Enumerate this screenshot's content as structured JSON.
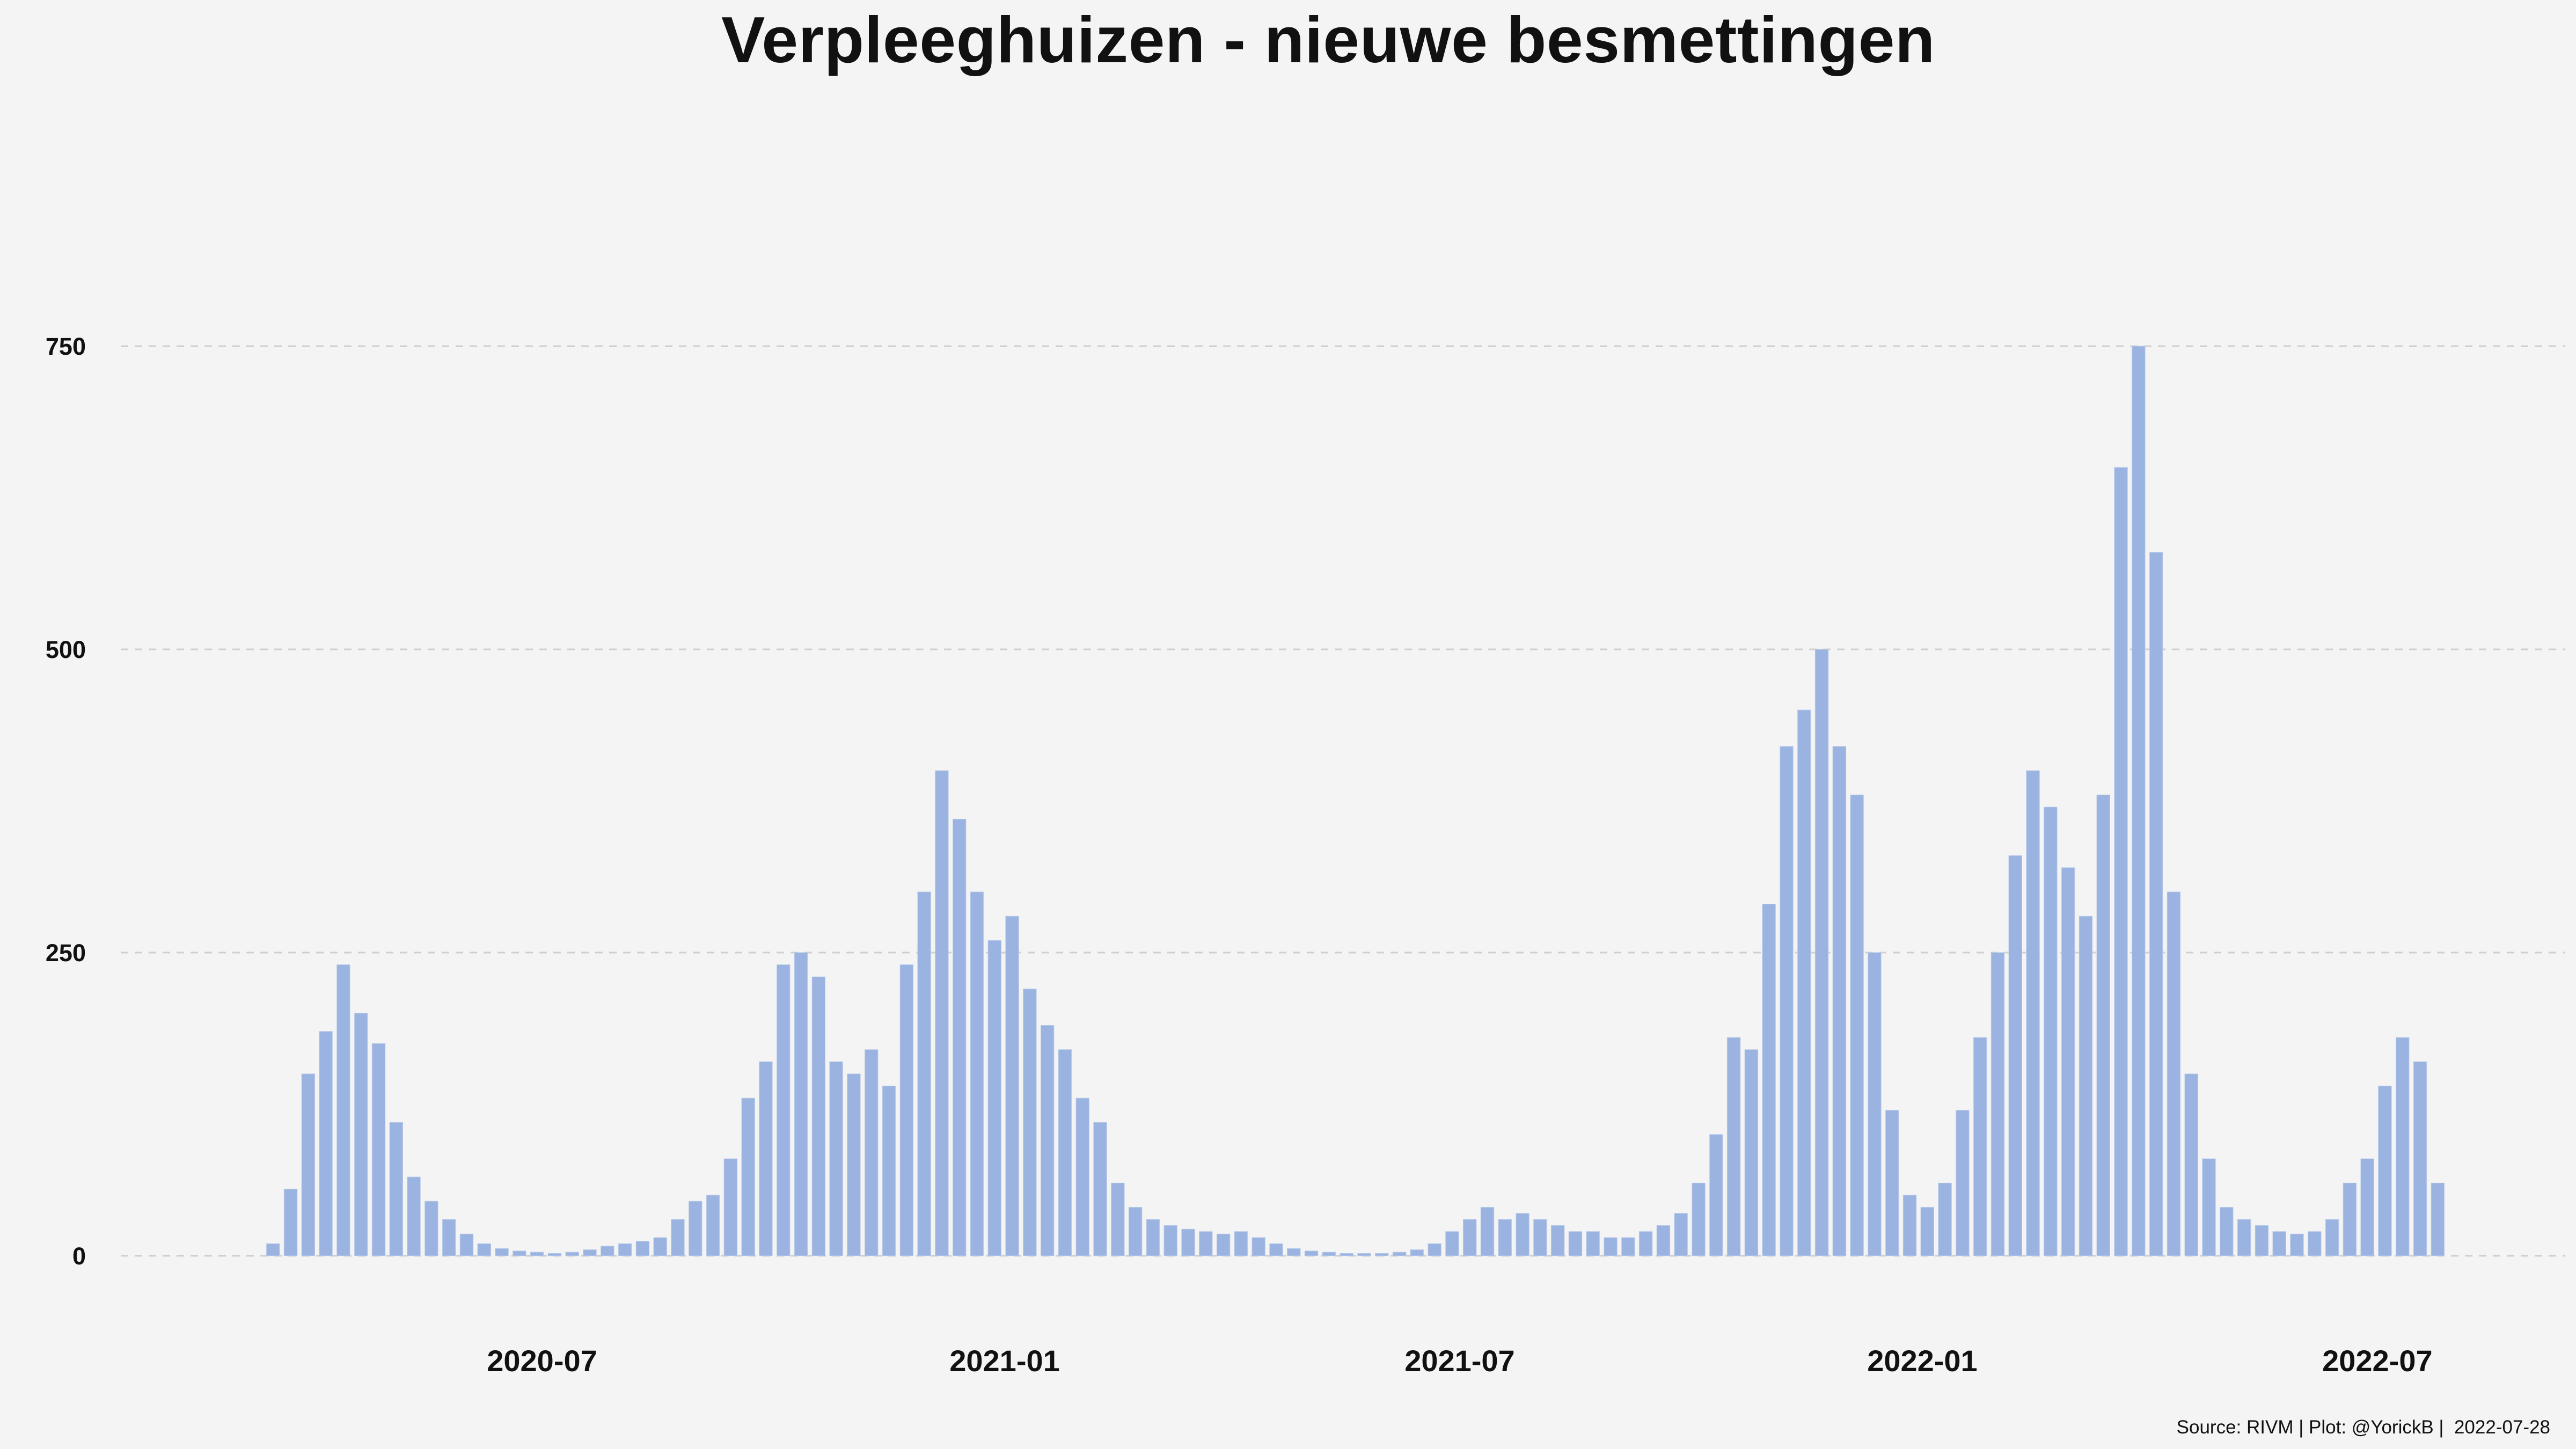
{
  "chart_data": {
    "type": "bar",
    "title": "Verpleeghuizen - nieuwe besmettingen",
    "xlabel": "",
    "ylabel": "",
    "x_ticks": [
      "2020-07",
      "2021-01",
      "2021-07",
      "2022-01",
      "2022-07"
    ],
    "y_ticks": [
      0,
      250,
      500,
      750
    ],
    "ylim": [
      0,
      920
    ],
    "grid": "horizontal dashed",
    "bar_color": "#9bb3e0",
    "resolution": "weekly sampled daily values (approx. every 7 days)",
    "dates": [
      "2020-03-16",
      "2020-03-23",
      "2020-03-30",
      "2020-04-06",
      "2020-04-13",
      "2020-04-20",
      "2020-04-27",
      "2020-05-04",
      "2020-05-11",
      "2020-05-18",
      "2020-05-25",
      "2020-06-01",
      "2020-06-08",
      "2020-06-15",
      "2020-06-22",
      "2020-06-29",
      "2020-07-06",
      "2020-07-13",
      "2020-07-20",
      "2020-07-27",
      "2020-08-03",
      "2020-08-10",
      "2020-08-17",
      "2020-08-24",
      "2020-08-31",
      "2020-09-07",
      "2020-09-14",
      "2020-09-21",
      "2020-09-28",
      "2020-10-05",
      "2020-10-12",
      "2020-10-19",
      "2020-10-26",
      "2020-11-02",
      "2020-11-09",
      "2020-11-16",
      "2020-11-23",
      "2020-11-30",
      "2020-12-07",
      "2020-12-14",
      "2020-12-21",
      "2020-12-28",
      "2021-01-04",
      "2021-01-11",
      "2021-01-18",
      "2021-01-25",
      "2021-02-01",
      "2021-02-08",
      "2021-02-15",
      "2021-02-22",
      "2021-03-01",
      "2021-03-08",
      "2021-03-15",
      "2021-03-22",
      "2021-03-29",
      "2021-04-05",
      "2021-04-12",
      "2021-04-19",
      "2021-04-26",
      "2021-05-03",
      "2021-05-10",
      "2021-05-17",
      "2021-05-24",
      "2021-05-31",
      "2021-06-07",
      "2021-06-14",
      "2021-06-21",
      "2021-06-28",
      "2021-07-05",
      "2021-07-12",
      "2021-07-19",
      "2021-07-26",
      "2021-08-02",
      "2021-08-09",
      "2021-08-16",
      "2021-08-23",
      "2021-08-30",
      "2021-09-06",
      "2021-09-13",
      "2021-09-20",
      "2021-09-27",
      "2021-10-04",
      "2021-10-11",
      "2021-10-18",
      "2021-10-25",
      "2021-11-01",
      "2021-11-08",
      "2021-11-15",
      "2021-11-22",
      "2021-11-29",
      "2021-12-06",
      "2021-12-13",
      "2021-12-20",
      "2021-12-27",
      "2022-01-03",
      "2022-01-10",
      "2022-01-17",
      "2022-01-24",
      "2022-01-31",
      "2022-02-07",
      "2022-02-14",
      "2022-02-21",
      "2022-02-28",
      "2022-03-07",
      "2022-03-14",
      "2022-03-21",
      "2022-03-28",
      "2022-04-04",
      "2022-04-11",
      "2022-04-18",
      "2022-04-25",
      "2022-05-02",
      "2022-05-09",
      "2022-05-16",
      "2022-05-23",
      "2022-05-30",
      "2022-06-06",
      "2022-06-13",
      "2022-06-20",
      "2022-06-27",
      "2022-07-04",
      "2022-07-11",
      "2022-07-18",
      "2022-07-25"
    ],
    "values": [
      10,
      55,
      150,
      185,
      240,
      200,
      175,
      110,
      65,
      45,
      30,
      18,
      10,
      6,
      4,
      3,
      2,
      3,
      5,
      8,
      10,
      12,
      15,
      30,
      45,
      50,
      80,
      130,
      160,
      240,
      250,
      230,
      160,
      150,
      170,
      140,
      240,
      300,
      400,
      360,
      300,
      260,
      280,
      220,
      190,
      170,
      130,
      110,
      60,
      40,
      30,
      25,
      22,
      20,
      18,
      20,
      15,
      10,
      6,
      4,
      3,
      2,
      2,
      2,
      3,
      5,
      10,
      20,
      30,
      40,
      30,
      35,
      30,
      25,
      20,
      20,
      15,
      15,
      20,
      25,
      35,
      60,
      100,
      180,
      170,
      290,
      420,
      450,
      500,
      420,
      380,
      250,
      120,
      50,
      40,
      60,
      120,
      180,
      250,
      330,
      400,
      370,
      320,
      280,
      380,
      650,
      750,
      580,
      300,
      150,
      80,
      40,
      30,
      25,
      20,
      18,
      20,
      30,
      60,
      80,
      140,
      180,
      160,
      60
    ]
  },
  "caption": "Source: RIVM | Plot: @YorickB |  2022-07-28"
}
